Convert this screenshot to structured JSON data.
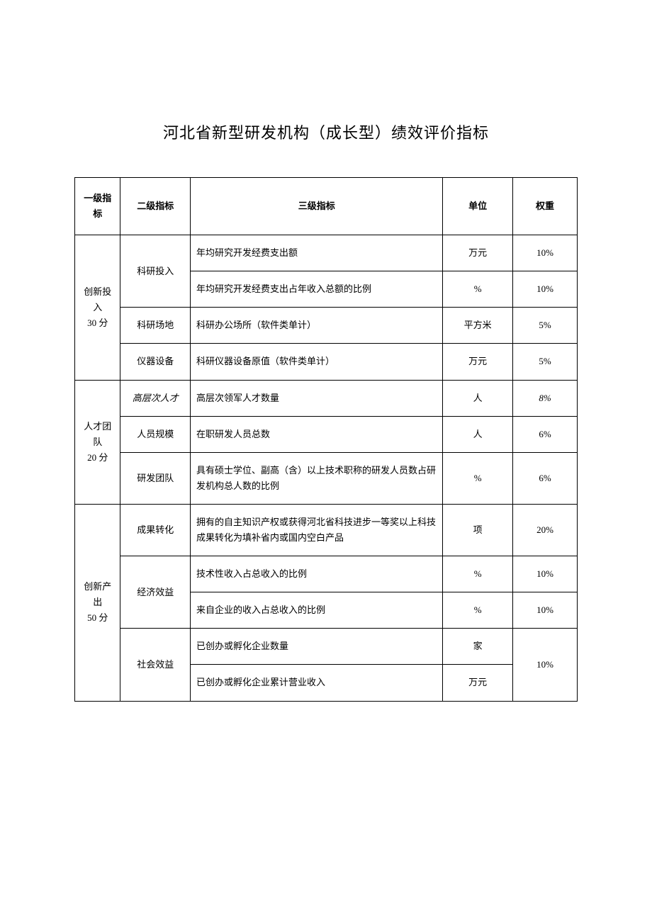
{
  "title": "河北省新型研发机构（成长型）绩效评价指标",
  "headers": {
    "l1": "一级指标",
    "l2": "二级指标",
    "l3": "三级指标",
    "unit": "单位",
    "weight": "权重"
  },
  "groups": [
    {
      "l1_line1": "创新投入",
      "l1_line2": "30 分",
      "subs": [
        {
          "l2": "科研投入",
          "rows": [
            {
              "l3": "年均研究开发经费支出额",
              "unit": "万元",
              "weight": "10%"
            },
            {
              "l3": "年均研究开发经费支出占年收入总额的比例",
              "unit": "%",
              "weight": "10%"
            }
          ]
        },
        {
          "l2": "科研场地",
          "rows": [
            {
              "l3": "科研办公场所（软件类单计）",
              "unit": "平方米",
              "weight": "5%"
            }
          ]
        },
        {
          "l2": "仪器设备",
          "rows": [
            {
              "l3": "科研仪器设备原值（软件类单计）",
              "unit": "万元",
              "weight": "5%"
            }
          ]
        }
      ]
    },
    {
      "l1_line1": "人才团队",
      "l1_line2": "20 分",
      "subs": [
        {
          "l2": "高层次人才",
          "italic": true,
          "rows": [
            {
              "l3": "高层次领军人才数量",
              "unit": "人",
              "weight": "8%",
              "italic_weight": true
            }
          ]
        },
        {
          "l2": "人员规模",
          "rows": [
            {
              "l3": "在职研发人员总数",
              "unit": "人",
              "weight": "6%"
            }
          ]
        },
        {
          "l2": "研发团队",
          "rows": [
            {
              "l3": "具有硕士学位、副高（含）以上技术职称的研发人员数占研发机构总人数的比例",
              "unit": "%",
              "weight": "6%"
            }
          ]
        }
      ]
    },
    {
      "l1_line1": "创新产出",
      "l1_line2": "50 分",
      "subs": [
        {
          "l2": "成果转化",
          "rows": [
            {
              "l3": "拥有的自主知识产权或获得河北省科技进步一等奖以上科技成果转化为填补省内或国内空白产品",
              "unit": "项",
              "weight": "20%"
            }
          ]
        },
        {
          "l2": "经济效益",
          "rows": [
            {
              "l3": "技术性收入占总收入的比例",
              "unit": "%",
              "weight": "10%"
            },
            {
              "l3": "来自企业的收入占总收入的比例",
              "unit": "%",
              "weight": "10%"
            }
          ]
        },
        {
          "l2": "社会效益",
          "merged_weight": "10%",
          "rows": [
            {
              "l3": "已创办或孵化企业数量",
              "unit": "家"
            },
            {
              "l3": "已创办或孵化企业累计营业收入",
              "unit": "万元"
            }
          ]
        }
      ]
    }
  ]
}
